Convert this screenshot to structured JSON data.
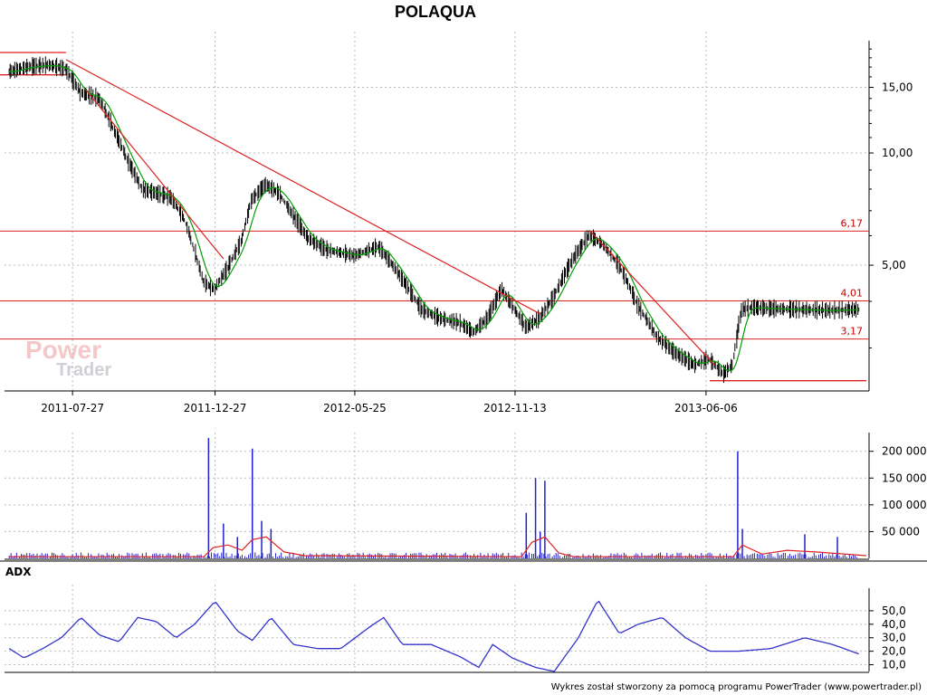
{
  "chart_data": [
    {
      "type": "line",
      "panel": "price",
      "title": "POLAQUA",
      "scale": "log",
      "ylim": [
        2.3,
        20
      ],
      "yticks": [
        {
          "value": 15,
          "label": "15,00"
        },
        {
          "value": 10,
          "label": "10,00"
        },
        {
          "value": 5,
          "label": "5,00"
        }
      ],
      "xticks": [
        {
          "date": "2011-07-27",
          "label": "2011-07-27"
        },
        {
          "date": "2011-12-27",
          "label": "2011-12-27"
        },
        {
          "date": "2012-05-25",
          "label": "2012-05-25"
        },
        {
          "date": "2012-11-13",
          "label": "2012-11-13"
        },
        {
          "date": "2013-06-06",
          "label": "2013-06-06"
        }
      ],
      "grid": true,
      "price_path": [
        [
          "2011-05-20",
          16.5
        ],
        [
          "2011-06-10",
          17.0
        ],
        [
          "2011-07-01",
          17.2
        ],
        [
          "2011-07-20",
          16.8
        ],
        [
          "2011-08-05",
          14.5
        ],
        [
          "2011-08-25",
          14.0
        ],
        [
          "2011-09-10",
          11.5
        ],
        [
          "2011-09-25",
          9.5
        ],
        [
          "2011-10-10",
          8.0
        ],
        [
          "2011-10-25",
          7.8
        ],
        [
          "2011-11-10",
          7.6
        ],
        [
          "2011-11-25",
          6.6
        ],
        [
          "2011-12-05",
          5.5
        ],
        [
          "2011-12-15",
          4.5
        ],
        [
          "2011-12-27",
          4.3
        ],
        [
          "2012-01-10",
          4.9
        ],
        [
          "2012-01-25",
          5.8
        ],
        [
          "2012-02-05",
          7.5
        ],
        [
          "2012-02-20",
          8.2
        ],
        [
          "2012-03-05",
          7.8
        ],
        [
          "2012-03-20",
          6.8
        ],
        [
          "2012-04-05",
          5.9
        ],
        [
          "2012-04-25",
          5.5
        ],
        [
          "2012-05-25",
          5.3
        ],
        [
          "2012-06-20",
          5.6
        ],
        [
          "2012-07-15",
          4.6
        ],
        [
          "2012-08-05",
          3.8
        ],
        [
          "2012-08-25",
          3.6
        ],
        [
          "2012-09-15",
          3.5
        ],
        [
          "2012-09-30",
          3.3
        ],
        [
          "2012-10-15",
          3.6
        ],
        [
          "2012-10-30",
          4.3
        ],
        [
          "2012-11-13",
          3.8
        ],
        [
          "2012-11-25",
          3.4
        ],
        [
          "2012-12-10",
          3.6
        ],
        [
          "2012-12-25",
          4.1
        ],
        [
          "2013-01-15",
          5.2
        ],
        [
          "2013-02-01",
          6.0
        ],
        [
          "2013-02-15",
          5.7
        ],
        [
          "2013-03-05",
          5.0
        ],
        [
          "2013-03-25",
          3.9
        ],
        [
          "2013-04-15",
          3.2
        ],
        [
          "2013-05-05",
          2.9
        ],
        [
          "2013-05-25",
          2.7
        ],
        [
          "2013-06-10",
          2.8
        ],
        [
          "2013-06-25",
          2.55
        ],
        [
          "2013-07-05",
          2.7
        ],
        [
          "2013-07-15",
          3.8
        ],
        [
          "2013-07-25",
          3.85
        ],
        [
          "2013-08-15",
          3.82
        ],
        [
          "2013-09-15",
          3.8
        ],
        [
          "2013-10-15",
          3.78
        ],
        [
          "2013-11-15",
          3.8
        ]
      ],
      "levels": [
        {
          "value": 6.17,
          "label": "6,17"
        },
        {
          "value": 4.01,
          "label": "4,01"
        },
        {
          "value": 3.17,
          "label": "3,17"
        }
      ],
      "trendlines": [
        {
          "from": [
            "2011-07-20",
            17.8
          ],
          "to": [
            "2012-12-10",
            3.7
          ]
        },
        {
          "from": [
            "2011-08-10",
            14.8
          ],
          "to": [
            "2012-01-05",
            5.2
          ]
        },
        {
          "from": [
            "2013-02-01",
            6.2
          ],
          "to": [
            "2013-06-15",
            2.7
          ]
        }
      ],
      "short_levels": [
        {
          "from": "2011-05-10",
          "to": "2011-07-20",
          "value": 18.6
        },
        {
          "from": "2011-05-10",
          "to": "2011-07-20",
          "value": 16.2
        },
        {
          "from": "2013-06-10",
          "to": "2013-11-25",
          "value": 2.45
        }
      ]
    },
    {
      "type": "bar",
      "panel": "volume",
      "ylim": [
        0,
        235000
      ],
      "yticks": [
        {
          "value": 50000,
          "label": "50 000"
        },
        {
          "value": 100000,
          "label": "100 000"
        },
        {
          "value": 150000,
          "label": "150 000"
        },
        {
          "value": 200000,
          "label": "200 000"
        }
      ],
      "spikes": [
        [
          "2011-12-20",
          225000
        ],
        [
          "2012-01-05",
          65000
        ],
        [
          "2012-01-20",
          40000
        ],
        [
          "2012-02-05",
          205000
        ],
        [
          "2012-02-15",
          70000
        ],
        [
          "2012-02-25",
          55000
        ],
        [
          "2012-11-25",
          85000
        ],
        [
          "2012-12-05",
          150000
        ],
        [
          "2012-12-15",
          145000
        ],
        [
          "2012-12-10",
          50000
        ],
        [
          "2013-07-10",
          200000
        ],
        [
          "2013-07-15",
          55000
        ],
        [
          "2013-09-20",
          45000
        ],
        [
          "2013-10-25",
          40000
        ]
      ],
      "average_path": [
        [
          "2011-05-20",
          3000
        ],
        [
          "2011-12-15",
          3000
        ],
        [
          "2011-12-25",
          20000
        ],
        [
          "2012-01-10",
          25000
        ],
        [
          "2012-01-25",
          15000
        ],
        [
          "2012-02-05",
          35000
        ],
        [
          "2012-02-20",
          40000
        ],
        [
          "2012-03-10",
          12000
        ],
        [
          "2012-04-01",
          5000
        ],
        [
          "2012-11-20",
          3000
        ],
        [
          "2012-12-01",
          30000
        ],
        [
          "2012-12-15",
          40000
        ],
        [
          "2012-12-30",
          10000
        ],
        [
          "2013-01-15",
          3000
        ],
        [
          "2013-07-05",
          3000
        ],
        [
          "2013-07-15",
          25000
        ],
        [
          "2013-08-05",
          8000
        ],
        [
          "2013-09-01",
          15000
        ],
        [
          "2013-10-01",
          12000
        ],
        [
          "2013-11-25",
          5000
        ]
      ]
    },
    {
      "type": "line",
      "panel": "adx",
      "label": "ADX",
      "ylim": [
        5,
        60
      ],
      "yticks": [
        {
          "value": 10,
          "label": "10,0"
        },
        {
          "value": 20,
          "label": "20,0"
        },
        {
          "value": 30,
          "label": "30,0"
        },
        {
          "value": 40,
          "label": "40,0"
        },
        {
          "value": 50,
          "label": "50,0"
        }
      ],
      "series": [
        {
          "color": "#3333cc",
          "points": [
            [
              "2011-05-20",
              22
            ],
            [
              "2011-06-05",
              15
            ],
            [
              "2011-06-25",
              22
            ],
            [
              "2011-07-15",
              30
            ],
            [
              "2011-08-05",
              45
            ],
            [
              "2011-08-25",
              32
            ],
            [
              "2011-09-15",
              27
            ],
            [
              "2011-10-05",
              45
            ],
            [
              "2011-10-25",
              42
            ],
            [
              "2011-11-15",
              30
            ],
            [
              "2011-12-05",
              40
            ],
            [
              "2011-12-27",
              57
            ],
            [
              "2012-01-20",
              35
            ],
            [
              "2012-02-05",
              28
            ],
            [
              "2012-02-25",
              45
            ],
            [
              "2012-03-20",
              25
            ],
            [
              "2012-04-15",
              22
            ],
            [
              "2012-05-10",
              22
            ],
            [
              "2012-06-10",
              38
            ],
            [
              "2012-06-25",
              45
            ],
            [
              "2012-07-15",
              25
            ],
            [
              "2012-08-15",
              25
            ],
            [
              "2012-09-15",
              16
            ],
            [
              "2012-10-05",
              8
            ],
            [
              "2012-10-20",
              25
            ],
            [
              "2012-11-10",
              15
            ],
            [
              "2012-12-05",
              8
            ],
            [
              "2012-12-25",
              5
            ],
            [
              "2013-01-20",
              30
            ],
            [
              "2013-02-10",
              58
            ],
            [
              "2013-03-05",
              33
            ],
            [
              "2013-03-25",
              40
            ],
            [
              "2013-04-20",
              45
            ],
            [
              "2013-05-15",
              30
            ],
            [
              "2013-06-10",
              20
            ],
            [
              "2013-07-10",
              20
            ],
            [
              "2013-08-15",
              22
            ],
            [
              "2013-09-20",
              30
            ],
            [
              "2013-10-20",
              25
            ],
            [
              "2013-11-25",
              16
            ]
          ]
        }
      ]
    }
  ],
  "footer": "Wykres został stworzony za pomocą programu PowerTrader (www.powertrader.pl)",
  "logo": {
    "top": "Power",
    "bottom": "Trader"
  },
  "colors": {
    "price_bars": "#000000",
    "average": "#00a000",
    "lines": "#dd2222",
    "volume": "#2222cc",
    "adx": "#3333cc",
    "grid": "#bbbbbb"
  }
}
